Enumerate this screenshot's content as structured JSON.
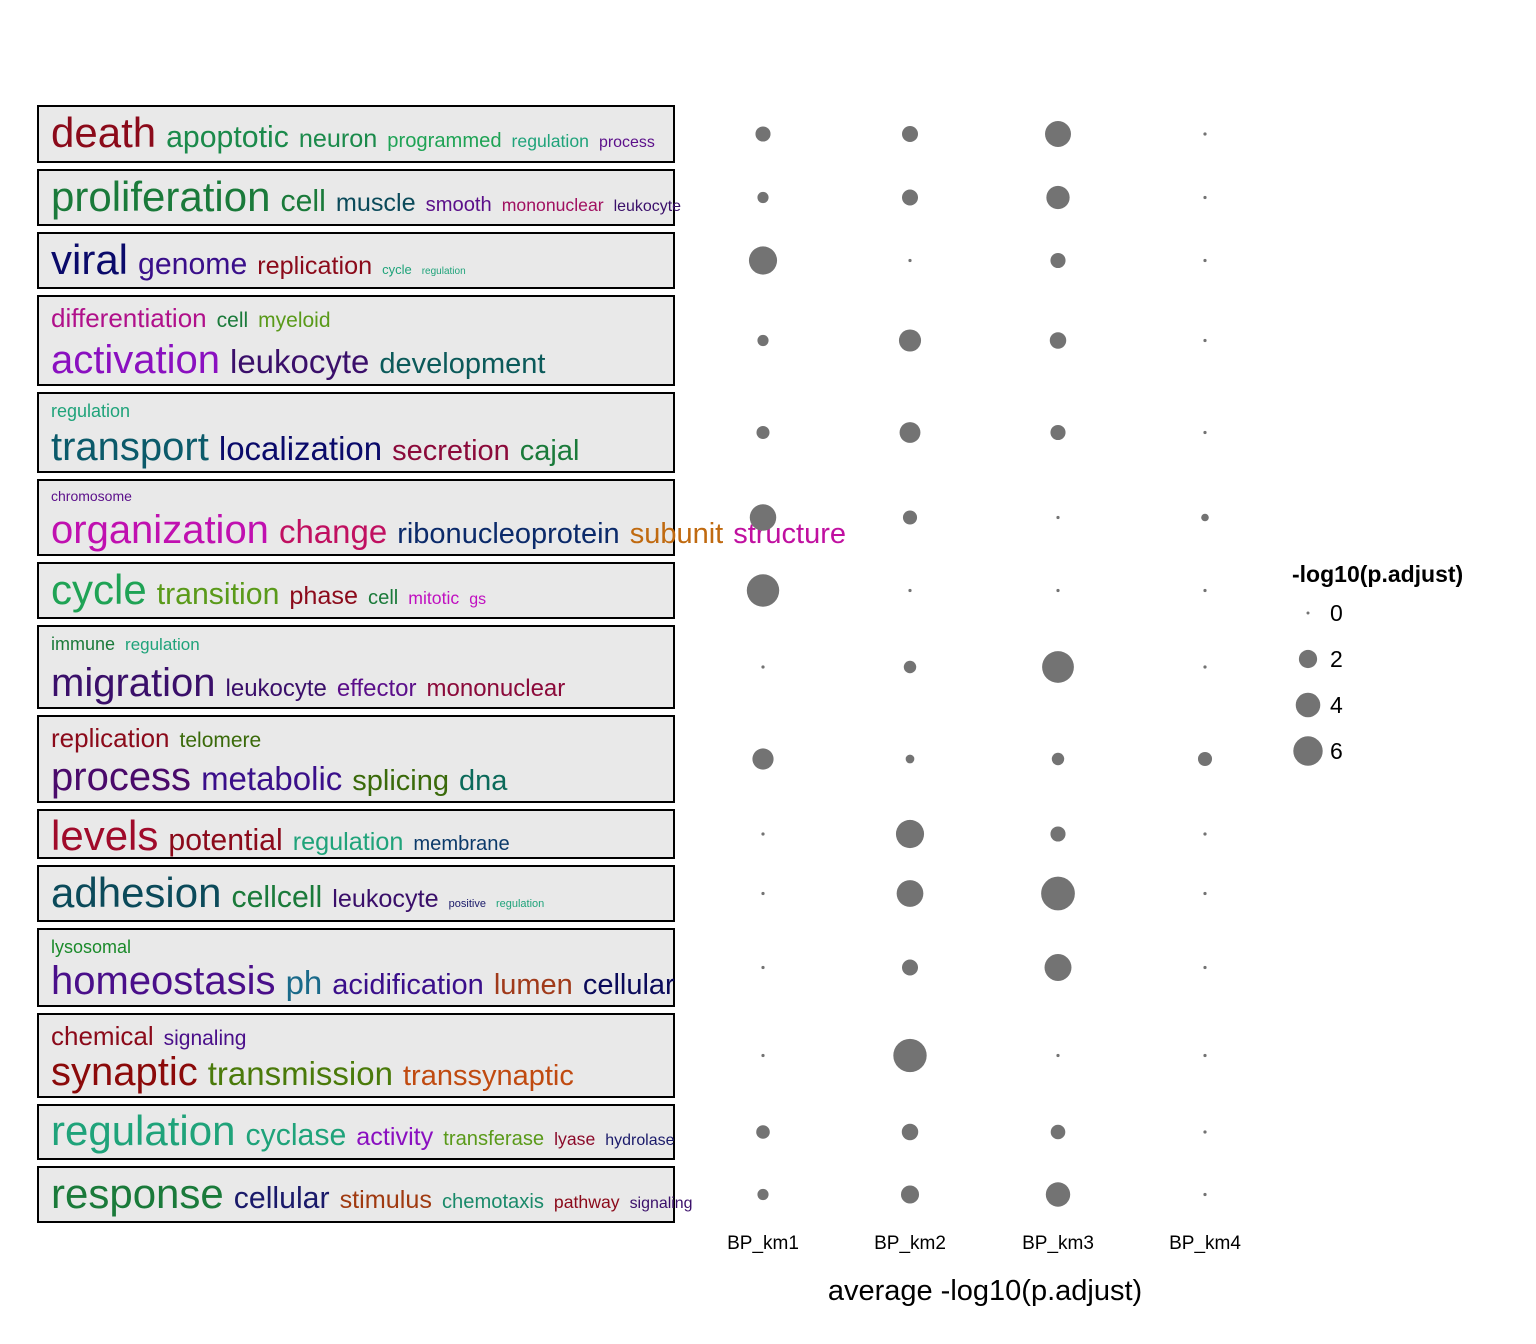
{
  "chart_data": {
    "type": "scatter",
    "x_categories": [
      "BP_km1",
      "BP_km2",
      "BP_km3",
      "BP_km4"
    ],
    "xlabel": "average -log10(p.adjust)",
    "size_legend": {
      "title": "-log10(p.adjust)",
      "breaks": [
        0,
        2,
        4,
        6
      ]
    },
    "point_color": "#737373",
    "clusters": [
      {
        "words": [
          [
            "death",
            "#8b0a1a"
          ],
          [
            "apoptotic",
            "#1b8a4b"
          ],
          [
            "neuron",
            "#1b8a4b"
          ],
          [
            "programmed",
            "#1fa355"
          ],
          [
            "regulation",
            "#1fa37a"
          ],
          [
            "process",
            "#5b0f8a"
          ]
        ],
        "values": [
          1.3,
          1.5,
          4.6,
          0.1
        ]
      },
      {
        "words": [
          [
            "proliferation",
            "#1a7a3a"
          ],
          [
            "cell",
            "#1a7a3a"
          ],
          [
            "muscle",
            "#0b4a5a"
          ],
          [
            "smooth",
            "#5b0f8a"
          ],
          [
            "mononuclear",
            "#a01060"
          ],
          [
            "leukocyte",
            "#3a0f6a"
          ]
        ],
        "values": [
          0.6,
          1.5,
          3.6,
          0.1
        ]
      },
      {
        "words": [
          [
            "viral",
            "#0a0a6a"
          ],
          [
            "genome",
            "#3a0f8a"
          ],
          [
            "replication",
            "#8b0a1a"
          ],
          [
            "cycle",
            "#1fa37a"
          ],
          [
            "regulation",
            "#1fa37a"
          ]
        ],
        "values": [
          5.5,
          0.1,
          1.3,
          0.1
        ]
      },
      {
        "words": [
          [
            "differentiation",
            "#b0108a"
          ],
          [
            "cell",
            "#1a7a3a"
          ],
          [
            "myeloid",
            "#5a9a1a"
          ],
          [
            "activation",
            "#8a10c0"
          ],
          [
            "leukocyte",
            "#3a0f6a"
          ],
          [
            "development",
            "#0b5a5a"
          ]
        ],
        "values": [
          0.6,
          3.2,
          1.6,
          0.1
        ]
      },
      {
        "words": [
          [
            "regulation",
            "#1fa37a"
          ],
          [
            "transport",
            "#0b5a6a"
          ],
          [
            "localization",
            "#0a0a6a"
          ],
          [
            "secretion",
            "#8b0a3a"
          ],
          [
            "cajal",
            "#1a7a3a"
          ]
        ],
        "values": [
          0.9,
          2.8,
          1.3,
          0.1
        ]
      },
      {
        "words": [
          [
            "chromosome",
            "#5b0f8a"
          ],
          [
            "organization",
            "#c010b0"
          ],
          [
            "change",
            "#c01060"
          ],
          [
            "ribonucleoprotein",
            "#0b2a6a"
          ],
          [
            "subunit",
            "#c06a10"
          ],
          [
            "structure",
            "#c010a0"
          ]
        ],
        "values": [
          4.8,
          1.1,
          0.1,
          0.2
        ]
      },
      {
        "words": [
          [
            "cycle",
            "#1fa355"
          ],
          [
            "transition",
            "#5a9a1a"
          ],
          [
            "phase",
            "#8b0a1a"
          ],
          [
            "cell",
            "#1a7a3a"
          ],
          [
            "mitotic",
            "#c010c0"
          ],
          [
            "gs",
            "#c010c0"
          ]
        ],
        "values": [
          7.5,
          0.1,
          0.1,
          0.1
        ]
      },
      {
        "words": [
          [
            "immune",
            "#1a7a3a"
          ],
          [
            "regulation",
            "#1fa37a"
          ],
          [
            "migration",
            "#3a0f6a"
          ],
          [
            "leukocyte",
            "#3a0f6a"
          ],
          [
            "effector",
            "#5b0f8a"
          ],
          [
            "mononuclear",
            "#8b0a3a"
          ]
        ],
        "values": [
          0.1,
          0.8,
          7.2,
          0.1
        ]
      },
      {
        "words": [
          [
            "replication",
            "#8b0a1a"
          ],
          [
            "telomere",
            "#3a6a0a"
          ],
          [
            "process",
            "#4a0a6a"
          ],
          [
            "metabolic",
            "#3a0f8a"
          ],
          [
            "splicing",
            "#3a6a0a"
          ],
          [
            "dna",
            "#0b6a5a"
          ]
        ],
        "values": [
          2.9,
          0.3,
          0.8,
          1.1
        ]
      },
      {
        "words": [
          [
            "levels",
            "#a00a2a"
          ],
          [
            "potential",
            "#8b0a1a"
          ],
          [
            "regulation",
            "#1fa37a"
          ],
          [
            "membrane",
            "#0b3a6a"
          ]
        ],
        "values": [
          0.1,
          5.5,
          1.3,
          0.1
        ]
      },
      {
        "words": [
          [
            "adhesion",
            "#0b4a5a"
          ],
          [
            "cellcell",
            "#1a7a3a"
          ],
          [
            "leukocyte",
            "#3a0f6a"
          ],
          [
            "positive",
            "#1a1a6a"
          ],
          [
            "regulation",
            "#1fa37a"
          ]
        ],
        "values": [
          0.1,
          4.9,
          8.2,
          0.1
        ]
      },
      {
        "words": [
          [
            "lysosomal",
            "#1a8a2a"
          ],
          [
            "homeostasis",
            "#4a0f8a"
          ],
          [
            "ph",
            "#1a6a8a"
          ],
          [
            "acidification",
            "#3a0f8a"
          ],
          [
            "lumen",
            "#a03a1a"
          ],
          [
            "cellular",
            "#0a0a5a"
          ]
        ],
        "values": [
          0.1,
          1.5,
          5.0,
          0.1
        ]
      },
      {
        "words": [
          [
            "chemical",
            "#8b0a1a"
          ],
          [
            "signaling",
            "#4a0f8a"
          ],
          [
            "synaptic",
            "#8b0a0a"
          ],
          [
            "transmission",
            "#4a7a0a"
          ],
          [
            "transsynaptic",
            "#c04a10"
          ]
        ],
        "values": [
          0.1,
          8.0,
          0.1,
          0.1
        ]
      },
      {
        "words": [
          [
            "regulation",
            "#1fa37a"
          ],
          [
            "cyclase",
            "#1fa37a"
          ],
          [
            "activity",
            "#8a10c0"
          ],
          [
            "transferase",
            "#5a9a1a"
          ],
          [
            "lyase",
            "#8b0a2a"
          ],
          [
            "hydrolase",
            "#1a1a6a"
          ]
        ],
        "values": [
          1.0,
          1.6,
          1.2,
          0.1
        ]
      },
      {
        "words": [
          [
            "response",
            "#1a7a3a"
          ],
          [
            "cellular",
            "#1a1a6a"
          ],
          [
            "stimulus",
            "#a03a10"
          ],
          [
            "chemotaxis",
            "#1a8a6a"
          ],
          [
            "pathway",
            "#8b0a1a"
          ],
          [
            "signaling",
            "#3a0f6a"
          ]
        ],
        "values": [
          0.6,
          2.0,
          4.0,
          0.1
        ]
      }
    ]
  }
}
